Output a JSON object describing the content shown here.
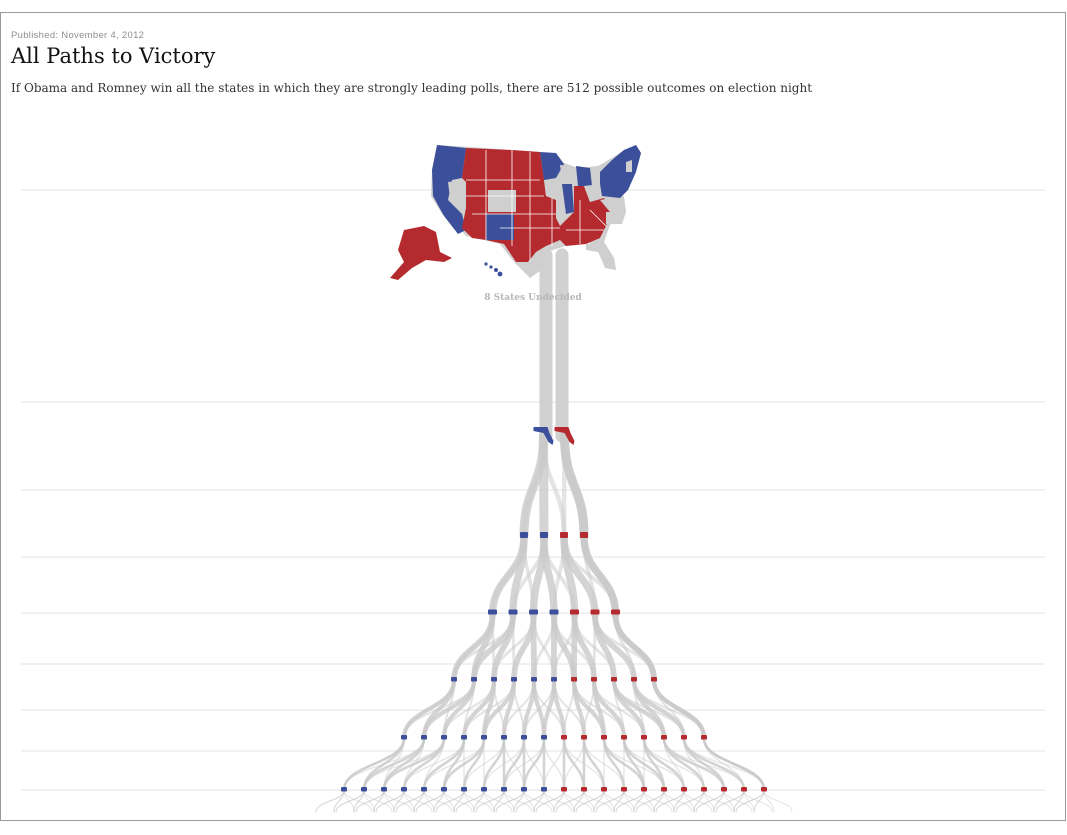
{
  "header": {
    "published": "Published: November 4, 2012",
    "title": "All Paths to Victory",
    "subtitle": "If Obama and Romney win all the states in which they are strongly leading polls, there are 512 possible outcomes on election night"
  },
  "map": {
    "label": "8 States Undecided"
  },
  "colors": {
    "obama": "#3b4f9b",
    "romney": "#b52a2e",
    "undecided": "#cfcfcf",
    "path": "#c9c9c9",
    "rule": "#e3e3e3"
  },
  "tree": {
    "undecided_states": 8,
    "levels": [
      {
        "state_icon": "florida",
        "count": 2
      },
      {
        "state_icon": "ohio",
        "count": 4
      },
      {
        "state_icon": "north-carolina",
        "count": 7
      },
      {
        "state_icon": "wisconsin",
        "count": 11
      },
      {
        "state_icon": "virginia",
        "count": 16
      },
      {
        "state_icon": "iowa",
        "count": 22
      }
    ]
  }
}
